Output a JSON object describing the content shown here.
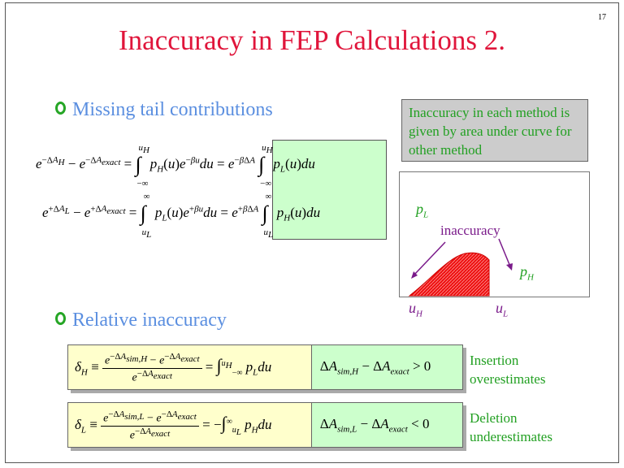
{
  "slide": {
    "page_number": "17",
    "title": "Inaccuracy in FEP Calculations 2.",
    "bullet1": "Missing tail contributions",
    "bullet2": "Relative inaccuracy",
    "note": "Inaccuracy in each method is given by area under curve for other method"
  },
  "plot": {
    "label_pL": "p",
    "label_pL_sub": "L",
    "label_pH": "p",
    "label_pH_sub": "H",
    "inaccuracy_label": "inaccuracy",
    "x_label_uH": "u",
    "x_label_uH_sub": "H",
    "x_label_uL": "u",
    "x_label_uL_sub": "L"
  },
  "results": {
    "insertion_line1": "Insertion",
    "insertion_line2": "overestimates",
    "deletion_line1": "Deletion",
    "deletion_line2": "underestimates"
  },
  "colors": {
    "title": "#e0153b",
    "bullet_text": "#5b8fe0",
    "bullet_ring": "#26a626",
    "note_text": "#22a022",
    "plot_accent": "#7a1a8a",
    "area_fill": "#ee1111"
  }
}
